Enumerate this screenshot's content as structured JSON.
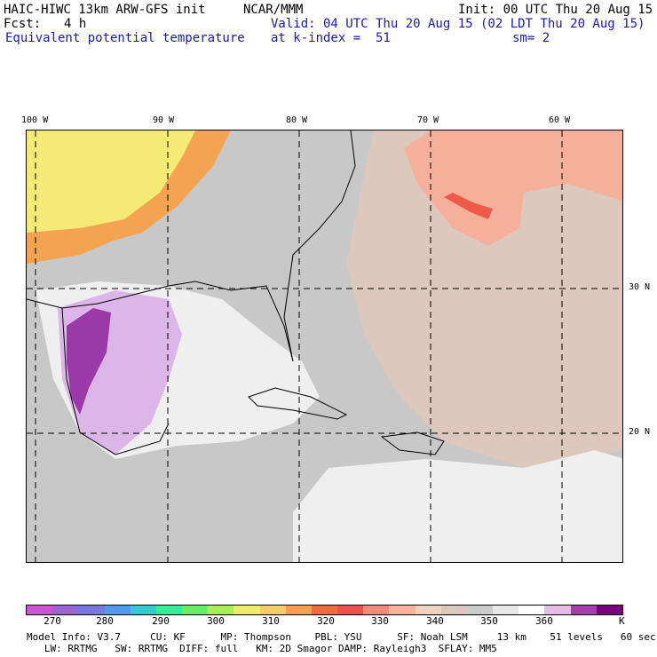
{
  "header": {
    "model": "HAIC-HIWC 13km ARW-GFS init",
    "center": "NCAR/MMM",
    "init": "Init: 00 UTC Thu 20 Aug 15",
    "fcst_label": "Fcst:",
    "fcst_value": "4 h",
    "valid": "Valid: 04 UTC Thu 20 Aug 15 (02 LDT Thu 20 Aug 15)",
    "field": "Equivalent potential temperature",
    "level": "at k-index =  51",
    "smooth": "sm= 2"
  },
  "map": {
    "lon_labels": [
      "100 W",
      "90 W",
      "80 W",
      "70 W",
      "60 W"
    ],
    "lat_labels": [
      "30 N",
      "20 N"
    ],
    "colors": {
      "background": "#c8c8c8",
      "atlantic_tan": "#dcc8bc",
      "warm_peach": "#f5b09c",
      "hot_red": "#ee5a4a",
      "gulf_light": "#efefef",
      "gulf_lavender": "#dcb6e8",
      "gulf_purple": "#9a3aa8",
      "land_yellow": "#f6ea76",
      "land_orange": "#f4a450"
    }
  },
  "colorbar": {
    "colors": [
      "#cc55cc",
      "#9966cc",
      "#7777dd",
      "#5599ee",
      "#33cccc",
      "#33ee99",
      "#66ee66",
      "#aaee55",
      "#eeee66",
      "#f5cc66",
      "#f5a050",
      "#f06a44",
      "#ee4f4f",
      "#f58a7a",
      "#f5b49c",
      "#eed3bf",
      "#dcc8bc",
      "#cccccc",
      "#e8e8e8",
      "#ffffff",
      "#e6bce6",
      "#a040a8",
      "#770077"
    ],
    "tick_labels": [
      "270",
      "280",
      "290",
      "300",
      "310",
      "320",
      "330",
      "340",
      "350",
      "360"
    ],
    "unit": "K"
  },
  "footer": {
    "line1": "Model Info: V3.7     CU: KF      MP: Thompson    PBL: YSU      SF: Noah LSM     13 km    51 levels   60 sec",
    "line2": "   LW: RRTMG   SW: RRTMG  DIFF: full   KM: 2D Smagor DAMP: Rayleigh3  SFLAY: MM5"
  }
}
